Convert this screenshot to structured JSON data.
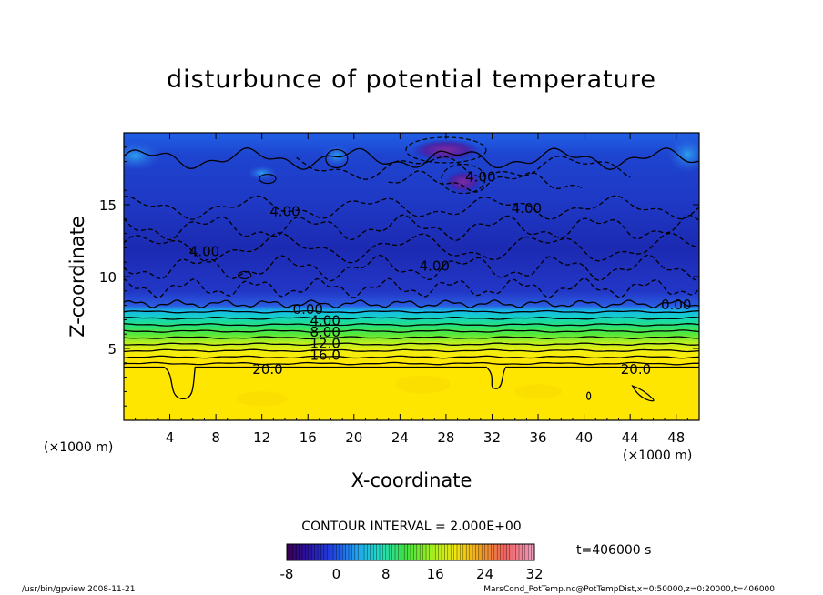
{
  "chart_data": {
    "type": "contour",
    "title": "disturbunce of potential temperature",
    "xlabel": "X-coordinate",
    "ylabel": "Z-coordinate",
    "x_unit_left": "(×1000 m)",
    "x_unit_right": "(×1000 m)",
    "xlim": [
      0,
      50
    ],
    "ylim": [
      0,
      20
    ],
    "x_ticks": [
      4,
      8,
      12,
      16,
      20,
      24,
      28,
      32,
      36,
      40,
      44,
      48
    ],
    "y_ticks": [
      5,
      10,
      15
    ],
    "contour_interval_text": "CONTOUR INTERVAL = 2.000E+00",
    "time_text": "t=406000 s",
    "colorbar": {
      "min": -8,
      "max": 32,
      "ticks": [
        -8,
        0,
        8,
        16,
        24,
        32
      ]
    },
    "contour_labels": [
      {
        "text": "4.00",
        "x": 14,
        "z": 14.6
      },
      {
        "text": "4.00",
        "x": 35,
        "z": 14.8
      },
      {
        "text": "4.00",
        "x": 7,
        "z": 11.8
      },
      {
        "text": "4.00",
        "x": 27,
        "z": 10.8
      },
      {
        "text": "4.00",
        "x": 31,
        "z": 17.0
      },
      {
        "text": "0.00",
        "x": 16,
        "z": 7.8
      },
      {
        "text": "0.00",
        "x": 48,
        "z": 8.1
      },
      {
        "text": "4.00",
        "x": 17.5,
        "z": 7.0
      },
      {
        "text": "8.00",
        "x": 17.5,
        "z": 6.2
      },
      {
        "text": "12.0",
        "x": 17.5,
        "z": 5.4
      },
      {
        "text": "16.0",
        "x": 17.5,
        "z": 4.6
      },
      {
        "text": "20.0",
        "x": 12.5,
        "z": 3.6
      },
      {
        "text": "20.0",
        "x": 44.5,
        "z": 3.6
      }
    ]
  },
  "footer": {
    "left": "/usr/bin/gpview  2008-11-21",
    "right": "MarsCond_PotTemp.nc@PotTempDist,x=0:50000,z=0:20000,t=406000"
  },
  "colors": {
    "upper_blue": "#1f3fd0",
    "deep_blue": "#1a24a8",
    "purple": "#6a2aa8",
    "yellow": "#ffe600"
  }
}
